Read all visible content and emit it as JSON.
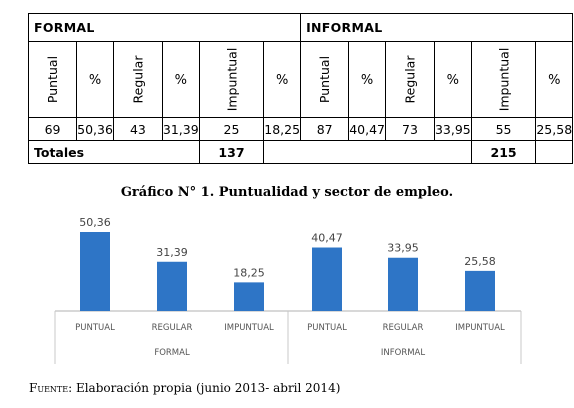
{
  "table": {
    "groups": [
      "FORMAL",
      "INFORMAL"
    ],
    "columns": [
      "Puntual",
      "%",
      "Regular",
      "%",
      "Impuntual",
      "%",
      "Puntual",
      "%",
      "Regular",
      "%",
      "Impuntual",
      "%"
    ],
    "values": [
      "69",
      "50,36",
      "43",
      "31,39",
      "25",
      "18,25",
      "87",
      "40,47",
      "73",
      "33,95",
      "55",
      "25,58"
    ],
    "totals_label": "Totales",
    "total_formal": "137",
    "total_informal": "215"
  },
  "caption": "Gráfico N° 1. Puntualidad y sector de empleo.",
  "chart_data": {
    "type": "bar",
    "categories": [
      "PUNTUAL",
      "REGULAR",
      "IMPUNTUAL",
      "PUNTUAL",
      "REGULAR",
      "IMPUNTUAL"
    ],
    "groups": [
      "FORMAL",
      "INFORMAL"
    ],
    "values": [
      50.36,
      31.39,
      18.25,
      40.47,
      33.95,
      25.58
    ],
    "labels": [
      "50,36",
      "31,39",
      "18,25",
      "40,47",
      "33,95",
      "25,58"
    ],
    "ylim": [
      0,
      50.36
    ],
    "bar_color": "#2e75c6",
    "grid": false,
    "legend": "none"
  },
  "source": {
    "label": "Fuente",
    "text": ": Elaboración propia (junio 2013- abril 2014)"
  }
}
